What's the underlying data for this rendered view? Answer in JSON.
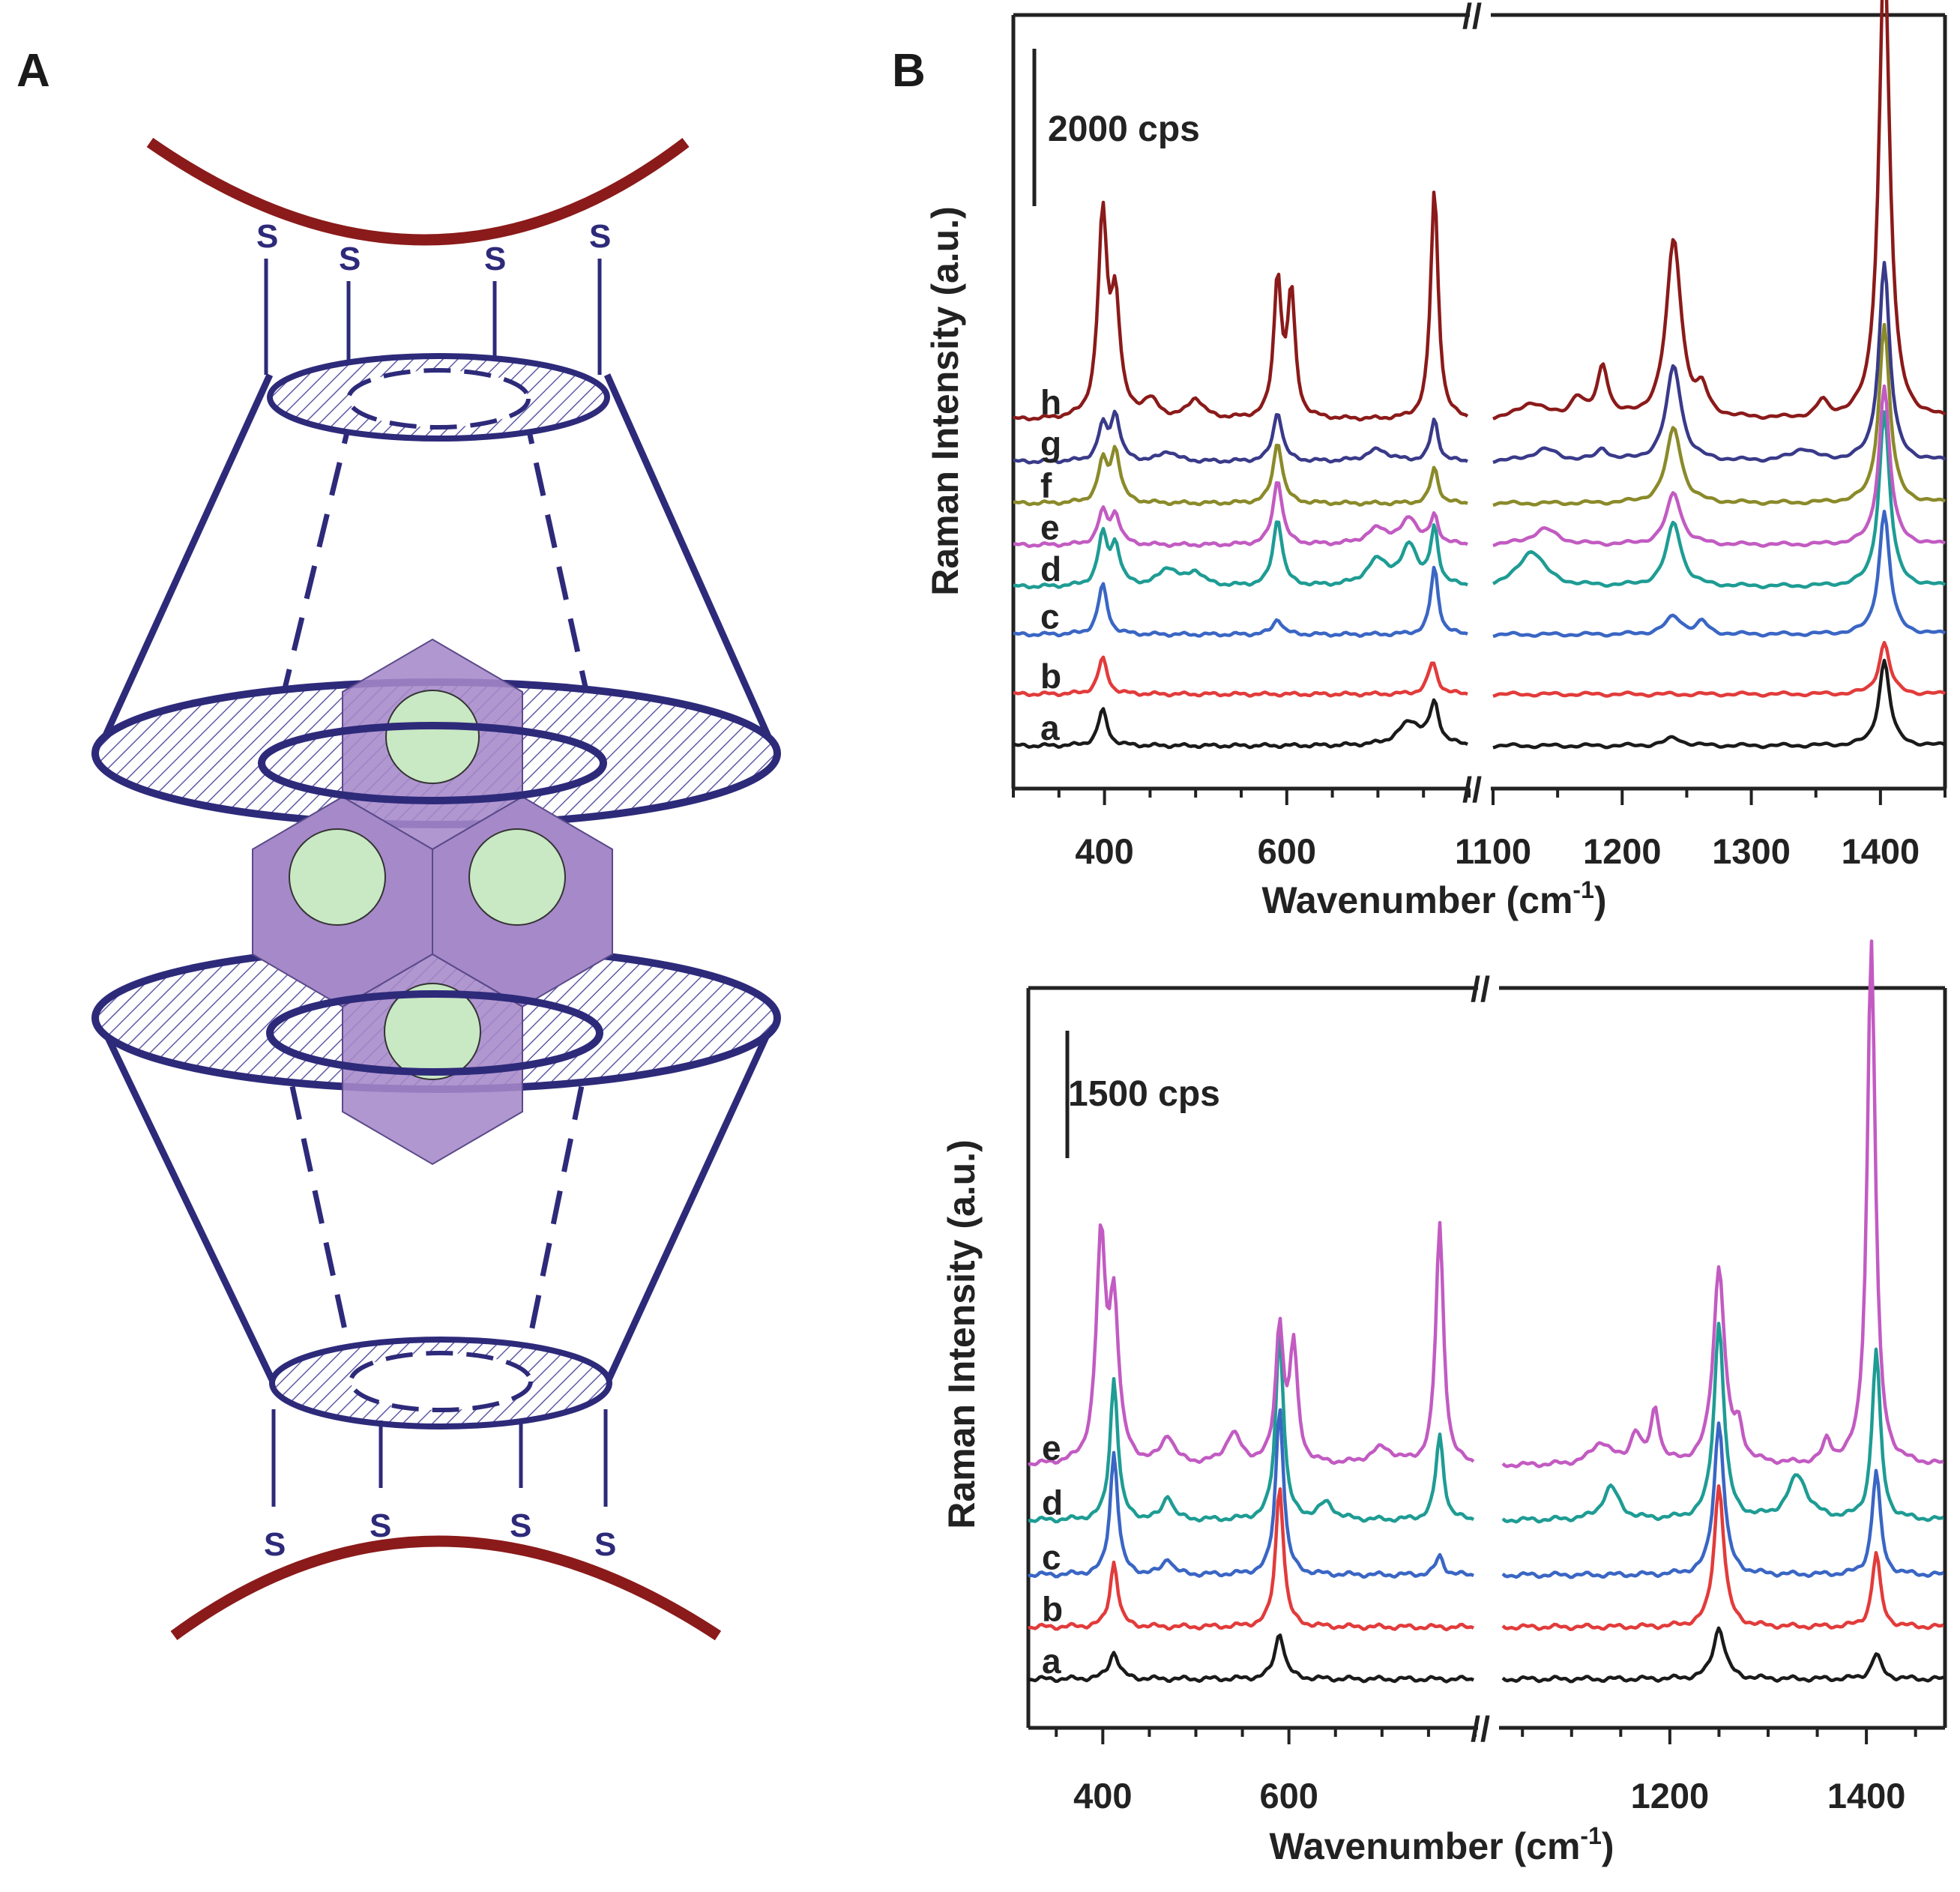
{
  "panel_a": {
    "label": "A",
    "s_labels_top": [
      "S",
      "S",
      "S",
      "S"
    ],
    "s_labels_bottom": [
      "S",
      "S",
      "S",
      "S"
    ],
    "colors": {
      "gold": "#8b1a1a",
      "cavitand": "#2e2a7a",
      "hexagon": "#a689c9",
      "sphere": "#c9e8c4"
    }
  },
  "panel_b": {
    "label": "B"
  },
  "chart_data": [
    {
      "type": "line",
      "title": "",
      "xlabel": "Wavenumber (cm-1)",
      "xlabel_base": "Wavenumber (cm",
      "xlabel_sup": "-1",
      "xlabel_close": ")",
      "ylabel": "Raman Intensity (a.u.)",
      "scale_bar": "2000 cps",
      "axis_break": "//",
      "segments": [
        {
          "xlim": [
            300,
            800
          ],
          "ticks": [
            400,
            600
          ],
          "tick_labels": [
            "400",
            "600"
          ]
        },
        {
          "xlim": [
            1100,
            1450
          ],
          "ticks": [
            1100,
            1200,
            1300,
            1400
          ],
          "tick_labels": [
            "1100",
            "1200",
            "1300",
            "1400"
          ]
        }
      ],
      "series": [
        {
          "name": "a",
          "color": "#1a1a1a",
          "offset": 0,
          "peaks": [
            [
              398,
              180,
              6
            ],
            [
              735,
              120,
              15
            ],
            [
              762,
              200,
              6
            ],
            [
              1240,
              40,
              8
            ],
            [
              1403,
              430,
              5
            ]
          ]
        },
        {
          "name": "b",
          "color": "#e23b3b",
          "offset": 260,
          "peaks": [
            [
              398,
              180,
              6
            ],
            [
              760,
              160,
              6
            ],
            [
              1403,
              260,
              5
            ]
          ]
        },
        {
          "name": "c",
          "color": "#3a66c4",
          "offset": 560,
          "peaks": [
            [
              398,
              250,
              6
            ],
            [
              590,
              80,
              6
            ],
            [
              762,
              340,
              5
            ],
            [
              1240,
              90,
              8
            ],
            [
              1262,
              60,
              5
            ],
            [
              1403,
              620,
              5
            ]
          ]
        },
        {
          "name": "d",
          "color": "#1e9c94",
          "offset": 800,
          "peaks": [
            [
              398,
              250,
              6
            ],
            [
              412,
              200,
              6
            ],
            [
              470,
              90,
              12
            ],
            [
              500,
              70,
              10
            ],
            [
              590,
              340,
              6
            ],
            [
              700,
              130,
              15
            ],
            [
              735,
              200,
              10
            ],
            [
              762,
              280,
              5
            ],
            [
              1130,
              180,
              12
            ],
            [
              1240,
              320,
              7
            ],
            [
              1403,
              880,
              5
            ]
          ]
        },
        {
          "name": "e",
          "color": "#c25bc2",
          "offset": 1010,
          "peaks": [
            [
              398,
              160,
              6
            ],
            [
              412,
              150,
              6
            ],
            [
              590,
              330,
              6
            ],
            [
              700,
              80,
              15
            ],
            [
              735,
              130,
              10
            ],
            [
              762,
              140,
              5
            ],
            [
              1140,
              80,
              12
            ],
            [
              1240,
              260,
              7
            ],
            [
              1403,
              800,
              5
            ]
          ]
        },
        {
          "name": "f",
          "color": "#8a8a2a",
          "offset": 1220,
          "peaks": [
            [
              398,
              200,
              6
            ],
            [
              412,
              260,
              6
            ],
            [
              590,
              310,
              6
            ],
            [
              762,
              180,
              5
            ],
            [
              1240,
              380,
              7
            ],
            [
              1403,
              900,
              5
            ]
          ]
        },
        {
          "name": "g",
          "color": "#3a3a8a",
          "offset": 1430,
          "peaks": [
            [
              398,
              170,
              6
            ],
            [
              412,
              230,
              6
            ],
            [
              470,
              50,
              10
            ],
            [
              590,
              250,
              6
            ],
            [
              700,
              60,
              15
            ],
            [
              762,
              210,
              5
            ],
            [
              1140,
              60,
              12
            ],
            [
              1185,
              60,
              5
            ],
            [
              1240,
              480,
              7
            ],
            [
              1340,
              60,
              10
            ],
            [
              1403,
              1000,
              5
            ]
          ]
        },
        {
          "name": "h",
          "color": "#8b1a1a",
          "offset": 1640,
          "peaks": [
            [
              398,
              1000,
              6
            ],
            [
              412,
              560,
              6
            ],
            [
              450,
              90,
              10
            ],
            [
              500,
              100,
              10
            ],
            [
              590,
              700,
              5
            ],
            [
              605,
              620,
              5
            ],
            [
              762,
              1160,
              5
            ],
            [
              1130,
              80,
              12
            ],
            [
              1165,
              100,
              6
            ],
            [
              1185,
              260,
              5
            ],
            [
              1240,
              900,
              7
            ],
            [
              1262,
              120,
              5
            ],
            [
              1355,
              80,
              5
            ],
            [
              1403,
              2380,
              5
            ]
          ]
        }
      ]
    },
    {
      "type": "line",
      "title": "",
      "xlabel": "Wavenumber (cm-1)",
      "xlabel_base": "Wavenumber (cm",
      "xlabel_sup": "-1",
      "xlabel_close": ")",
      "ylabel": "Raman Intensity (a.u.)",
      "scale_bar": "1500 cps",
      "axis_break": "//",
      "segments": [
        {
          "xlim": [
            320,
            800
          ],
          "ticks": [
            400,
            600
          ],
          "tick_labels": [
            "400",
            "600"
          ]
        },
        {
          "xlim": [
            1030,
            1480
          ],
          "ticks": [
            1200,
            1400
          ],
          "tick_labels": [
            "1200",
            "1400"
          ]
        }
      ],
      "series": [
        {
          "name": "a",
          "color": "#1a1a1a",
          "offset": 0,
          "peaks": [
            [
              412,
              100,
              6
            ],
            [
              590,
              170,
              6
            ],
            [
              1250,
              190,
              7
            ],
            [
              1410,
              90,
              6
            ]
          ]
        },
        {
          "name": "b",
          "color": "#e23b3b",
          "offset": 190,
          "peaks": [
            [
              412,
              240,
              5
            ],
            [
              590,
              520,
              5
            ],
            [
              1250,
              520,
              6
            ],
            [
              1410,
              270,
              5
            ]
          ]
        },
        {
          "name": "c",
          "color": "#3a66c4",
          "offset": 380,
          "peaks": [
            [
              412,
              450,
              5
            ],
            [
              470,
              60,
              6
            ],
            [
              590,
              620,
              5
            ],
            [
              762,
              70,
              5
            ],
            [
              1250,
              560,
              6
            ],
            [
              1410,
              380,
              5
            ]
          ]
        },
        {
          "name": "d",
          "color": "#1e9c94",
          "offset": 580,
          "peaks": [
            [
              412,
              520,
              5
            ],
            [
              470,
              90,
              6
            ],
            [
              590,
              690,
              5
            ],
            [
              640,
              60,
              10
            ],
            [
              762,
              310,
              5
            ],
            [
              1140,
              120,
              10
            ],
            [
              1250,
              720,
              6
            ],
            [
              1330,
              160,
              12
            ],
            [
              1410,
              620,
              5
            ]
          ]
        },
        {
          "name": "e",
          "color": "#c25bc2",
          "offset": 780,
          "peaks": [
            [
              398,
              800,
              6
            ],
            [
              412,
              560,
              6
            ],
            [
              470,
              100,
              8
            ],
            [
              540,
              110,
              10
            ],
            [
              590,
              500,
              5
            ],
            [
              605,
              420,
              5
            ],
            [
              700,
              60,
              15
            ],
            [
              762,
              880,
              5
            ],
            [
              1130,
              80,
              12
            ],
            [
              1165,
              110,
              6
            ],
            [
              1185,
              200,
              5
            ],
            [
              1250,
              720,
              7
            ],
            [
              1270,
              110,
              5
            ],
            [
              1360,
              80,
              5
            ],
            [
              1405,
              1920,
              5
            ]
          ]
        }
      ]
    }
  ]
}
